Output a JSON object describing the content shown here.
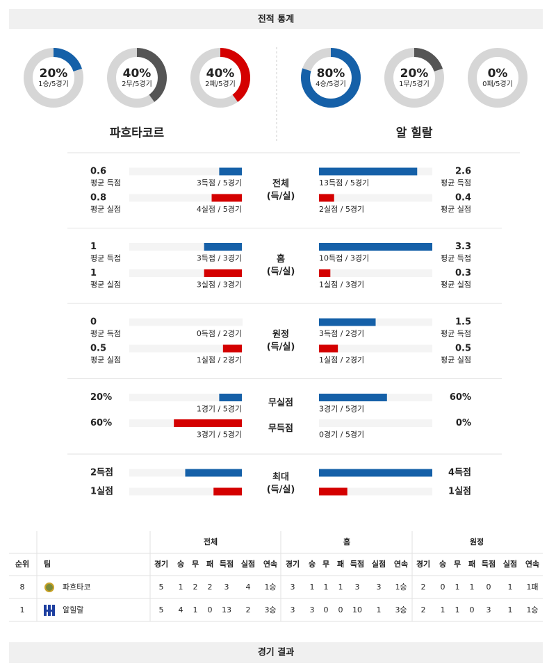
{
  "header": {
    "title": "전적 통계"
  },
  "teams": {
    "home": "파흐타코르",
    "away": "알 힐랄"
  },
  "donuts": {
    "lim": [
      0,
      100
    ],
    "home": [
      {
        "value": 20,
        "label": "20%",
        "caption": "1승/5경기",
        "color": "#1560a8"
      },
      {
        "value": 40,
        "label": "40%",
        "caption": "2무/5경기",
        "color": "#555555"
      },
      {
        "value": 40,
        "label": "40%",
        "caption": "2패/5경기",
        "color": "#d40000"
      }
    ],
    "away": [
      {
        "value": 80,
        "label": "80%",
        "caption": "4승/5경기",
        "color": "#1560a8"
      },
      {
        "value": 20,
        "label": "20%",
        "caption": "1무/5경기",
        "color": "#555555"
      },
      {
        "value": 0,
        "label": "0%",
        "caption": "0패/5경기",
        "color": "#d40000"
      }
    ]
  },
  "sections": [
    {
      "label": [
        "전체",
        "(득/실)"
      ],
      "xlim": [
        0,
        3
      ],
      "rows": [
        {
          "color": "#1560a8",
          "home": {
            "value": 0.6,
            "sub": "평균 득점",
            "caption": "3득점 / 5경기"
          },
          "away": {
            "value": 2.6,
            "sub": "평균 득점",
            "caption": "13득점 / 5경기"
          }
        },
        {
          "color": "#d40000",
          "home": {
            "value": 0.8,
            "sub": "평균 실점",
            "caption": "4실점 / 5경기"
          },
          "away": {
            "value": 0.4,
            "sub": "평균 실점",
            "caption": "2실점 / 5경기"
          }
        }
      ]
    },
    {
      "label": [
        "홈",
        "(득/실)"
      ],
      "xlim": [
        0,
        3
      ],
      "rows": [
        {
          "color": "#1560a8",
          "home": {
            "value": 1,
            "sub": "평균 득점",
            "caption": "3득점 / 3경기"
          },
          "away": {
            "value": 3.3,
            "sub": "평균 득점",
            "caption": "10득점 / 3경기"
          }
        },
        {
          "color": "#d40000",
          "home": {
            "value": 1,
            "sub": "평균 실점",
            "caption": "3실점 / 3경기"
          },
          "away": {
            "value": 0.3,
            "sub": "평균 실점",
            "caption": "1실점 / 3경기"
          }
        }
      ]
    },
    {
      "label": [
        "원정",
        "(득/실)"
      ],
      "xlim": [
        0,
        3
      ],
      "rows": [
        {
          "color": "#1560a8",
          "home": {
            "value": 0,
            "sub": "평균 득점",
            "caption": "0득점 / 2경기"
          },
          "away": {
            "value": 1.5,
            "sub": "평균 득점",
            "caption": "3득점 / 2경기"
          }
        },
        {
          "color": "#d40000",
          "home": {
            "value": 0.5,
            "sub": "평균 실점",
            "caption": "1실점 / 2경기"
          },
          "away": {
            "value": 0.5,
            "sub": "평균 실점",
            "caption": "1실점 / 2경기"
          }
        }
      ]
    },
    {
      "xlim": [
        0,
        100
      ],
      "rows": [
        {
          "label": "무실점",
          "color": "#1560a8",
          "home": {
            "value": 20,
            "label": "20%",
            "caption": "1경기 / 5경기"
          },
          "away": {
            "value": 60,
            "label": "60%",
            "caption": "3경기 / 5경기"
          }
        },
        {
          "label": "무득점",
          "color": "#d40000",
          "home": {
            "value": 60,
            "label": "60%",
            "caption": "3경기 / 5경기"
          },
          "away": {
            "value": 0,
            "label": "0%",
            "caption": "0경기 / 5경기"
          }
        }
      ]
    },
    {
      "label": [
        "최대",
        "(득/실)"
      ],
      "xlim": [
        0,
        4
      ],
      "rows": [
        {
          "color": "#1560a8",
          "home": {
            "value": 2,
            "label": "2득점"
          },
          "away": {
            "value": 4,
            "label": "4득점"
          }
        },
        {
          "color": "#d40000",
          "home": {
            "value": 1,
            "label": "1실점"
          },
          "away": {
            "value": 1,
            "label": "1실점"
          }
        }
      ]
    }
  ],
  "table": {
    "groups": [
      "전체",
      "홈",
      "원정"
    ],
    "columns": [
      "순위",
      "팀",
      "경기",
      "승",
      "무",
      "패",
      "득점",
      "실점",
      "연속",
      "경기",
      "승",
      "무",
      "패",
      "득점",
      "실점",
      "연속",
      "경기",
      "승",
      "무",
      "패",
      "득점",
      "실점",
      "연속"
    ],
    "rows": [
      [
        8,
        "파흐타코",
        5,
        1,
        2,
        2,
        3,
        4,
        "1승",
        3,
        1,
        1,
        1,
        3,
        3,
        "1승",
        2,
        0,
        1,
        1,
        0,
        1,
        "1패"
      ],
      [
        1,
        "알힐랄",
        5,
        4,
        1,
        0,
        13,
        2,
        "3승",
        3,
        3,
        0,
        0,
        10,
        1,
        "3승",
        2,
        1,
        1,
        0,
        3,
        1,
        "1승"
      ]
    ]
  },
  "footer": {
    "title": "경기 결과"
  }
}
